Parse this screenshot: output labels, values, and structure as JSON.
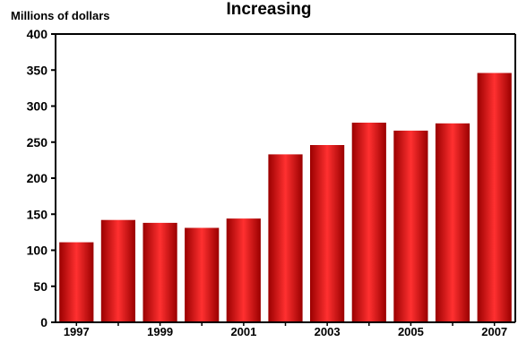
{
  "chart_data": {
    "type": "bar",
    "title": "Increasing",
    "ylabel": "Millions of dollars",
    "xlabel": "",
    "categories": [
      "1997",
      "1998",
      "1999",
      "2000",
      "2001",
      "2002",
      "2003",
      "2004",
      "2005",
      "2006",
      "2007"
    ],
    "x_tick_labels": [
      "1997",
      "",
      "1999",
      "",
      "2001",
      "",
      "2003",
      "",
      "2005",
      "",
      "2007"
    ],
    "values": [
      111,
      142,
      138,
      131,
      144,
      233,
      246,
      277,
      266,
      276,
      346
    ],
    "ylim": [
      0,
      400
    ],
    "y_ticks": [
      0,
      50,
      100,
      150,
      200,
      250,
      300,
      350,
      400
    ],
    "grid": false,
    "bar_color": "#e60000",
    "bar_dark_color": "#9a0000",
    "bar_light_color": "#ff3030"
  }
}
